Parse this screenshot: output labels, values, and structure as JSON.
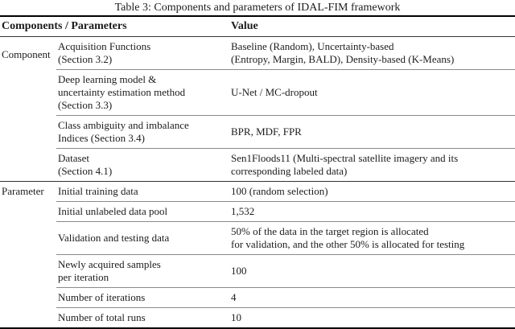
{
  "caption": "Table 3: Components and parameters of IDAL-FIM framework",
  "header": {
    "col_components_parameters": "Components / Parameters",
    "col_value": "Value"
  },
  "groups": {
    "component": {
      "label": "Component",
      "rows": [
        {
          "name": "Acquisition Functions\n(Section 3.2)",
          "value": "Baseline (Random), Uncertainty-based\n(Entropy, Margin, BALD), Density-based (K-Means)"
        },
        {
          "name": "Deep learning model &\nuncertainty estimation method\n(Section 3.3)",
          "value": "U-Net / MC-dropout"
        },
        {
          "name": "Class ambiguity and imbalance\nIndices (Section 3.4)",
          "value": "BPR, MDF, FPR"
        },
        {
          "name": "Dataset\n(Section 4.1)",
          "value": "Sen1Floods11 (Multi-spectral satellite imagery and its\ncorresponding labeled data)"
        }
      ]
    },
    "parameter": {
      "label": "Parameter",
      "rows": [
        {
          "name": "Initial training data",
          "value": "100 (random selection)"
        },
        {
          "name": "Initial unlabeled data pool",
          "value": "1,532"
        },
        {
          "name": "Validation and testing data",
          "value": "50% of the data in the target region is allocated\nfor validation, and the other 50% is allocated for testing"
        },
        {
          "name": "Newly acquired samples\nper iteration",
          "value": "100"
        },
        {
          "name": "Number of iterations",
          "value": "4"
        },
        {
          "name": "Number of total runs",
          "value": "10"
        }
      ]
    }
  },
  "colors": {
    "text": "#1c1c1c",
    "thick_rule": "#000000",
    "full_rule": "#333333",
    "partial_rule": "#8a8a8a"
  }
}
